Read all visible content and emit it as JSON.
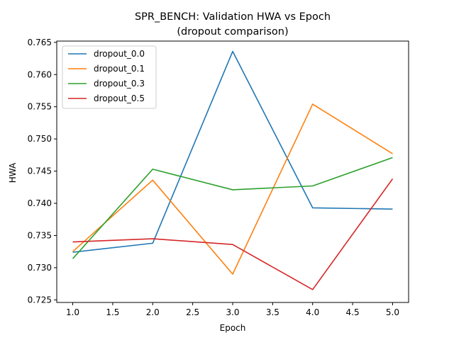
{
  "chart_data": {
    "type": "line",
    "title": "SPR_BENCH: Validation HWA vs Epoch",
    "subtitle": "(dropout comparison)",
    "xlabel": "Epoch",
    "ylabel": "HWA",
    "xlim": [
      0.8,
      5.2
    ],
    "ylim": [
      0.7246,
      0.7652
    ],
    "xticks": [
      1.0,
      1.5,
      2.0,
      2.5,
      3.0,
      3.5,
      4.0,
      4.5,
      5.0
    ],
    "xtick_labels": [
      "1.0",
      "1.5",
      "2.0",
      "2.5",
      "3.0",
      "3.5",
      "4.0",
      "4.5",
      "5.0"
    ],
    "yticks": [
      0.725,
      0.73,
      0.735,
      0.74,
      0.745,
      0.75,
      0.755,
      0.76,
      0.765
    ],
    "ytick_labels": [
      "0.725",
      "0.730",
      "0.735",
      "0.740",
      "0.745",
      "0.750",
      "0.755",
      "0.760",
      "0.765"
    ],
    "grid": false,
    "legend_position": "top-left",
    "x": [
      1,
      2,
      3,
      4,
      5
    ],
    "series": [
      {
        "name": "dropout_0.0",
        "color": "#1f77b4",
        "values": [
          0.7324,
          0.7338,
          0.7636,
          0.7393,
          0.7391
        ]
      },
      {
        "name": "dropout_0.1",
        "color": "#ff7f0e",
        "values": [
          0.7325,
          0.7436,
          0.729,
          0.7554,
          0.7477
        ]
      },
      {
        "name": "dropout_0.3",
        "color": "#2ca02c",
        "values": [
          0.7314,
          0.7453,
          0.7421,
          0.7427,
          0.7471
        ]
      },
      {
        "name": "dropout_0.5",
        "color": "#d62728",
        "values": [
          0.734,
          0.7345,
          0.7336,
          0.7266,
          0.7438
        ]
      }
    ]
  }
}
